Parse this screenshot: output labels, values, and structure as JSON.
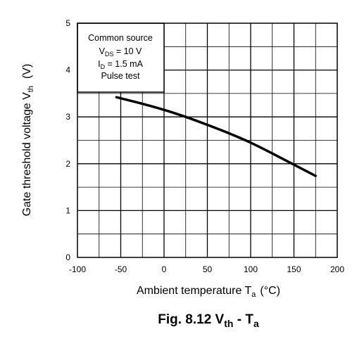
{
  "chart_data": {
    "type": "line",
    "xlabel": {
      "main": "Ambient temperature  T",
      "sub": "a",
      "unit": "(°C)"
    },
    "ylabel": {
      "main": "Gate threshold voltage  V",
      "sub": "th",
      "unit": "(V)"
    },
    "xlim": [
      -100,
      200
    ],
    "ylim": [
      0,
      5
    ],
    "x_ticks": [
      "-100",
      "-50",
      "0",
      "50",
      "100",
      "150",
      "200"
    ],
    "y_ticks": [
      "0",
      "1",
      "2",
      "3",
      "4",
      "5"
    ],
    "grid": true,
    "conditions": [
      {
        "text": "Common source"
      },
      {
        "main": "V",
        "sub": "DS",
        "rest": " = 10 V"
      },
      {
        "main": "I",
        "sub": "D",
        "rest": " = 1.5 mA"
      },
      {
        "text": "Pulse test"
      }
    ],
    "caption": {
      "prefix": "Fig. 8.12    V",
      "sub1": "th",
      "mid": " - T",
      "sub2": "a"
    },
    "series": [
      {
        "x": [
          -55,
          -25,
          0,
          25,
          50,
          75,
          100,
          125,
          150,
          175
        ],
        "y": [
          3.42,
          3.28,
          3.15,
          3.0,
          2.83,
          2.65,
          2.45,
          2.22,
          1.98,
          1.74
        ]
      }
    ]
  }
}
